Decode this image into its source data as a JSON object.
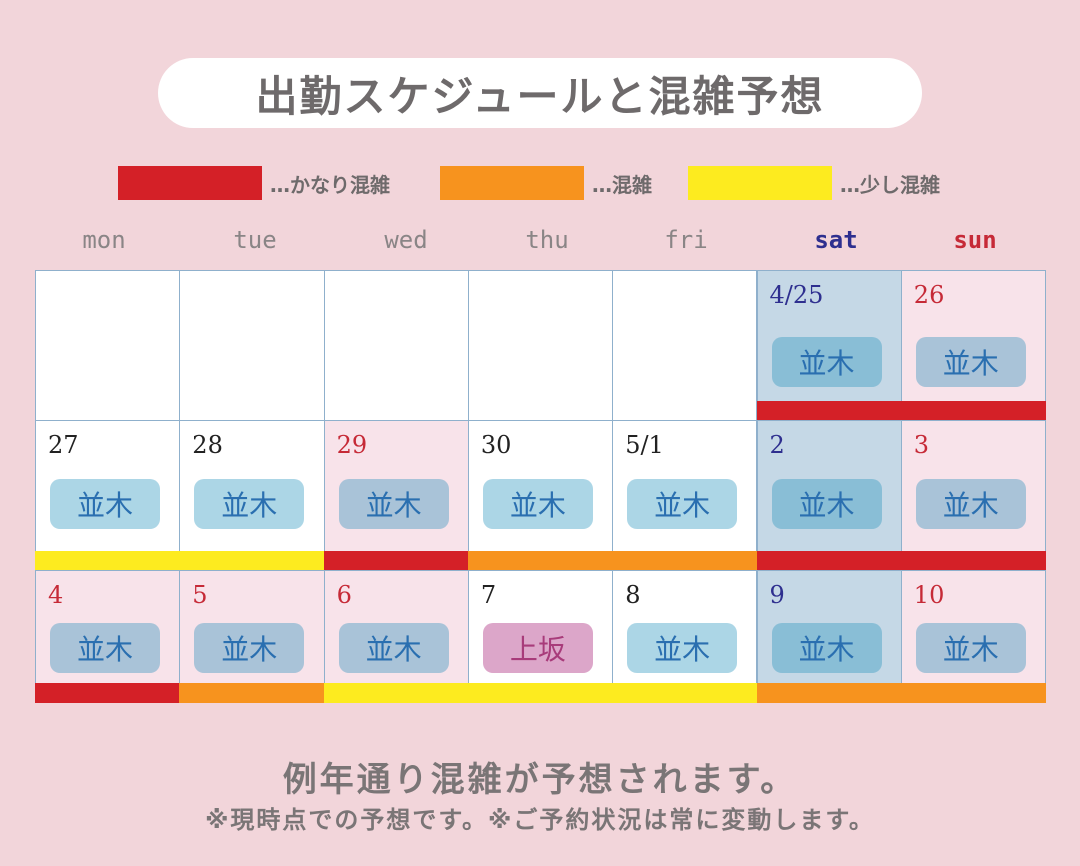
{
  "title": "出勤スケジュールと混雑予想",
  "legend": [
    {
      "label": "…かなり混雑",
      "color": "#d42027"
    },
    {
      "label": "…混雑",
      "color": "#f7931e"
    },
    {
      "label": "…少し混雑",
      "color": "#fdeb1f"
    }
  ],
  "weekdays": [
    "mon",
    "tue",
    "wed",
    "thu",
    "fri",
    "sat",
    "sun"
  ],
  "weeks": [
    {
      "days": [
        {
          "date": "",
          "staff": ""
        },
        {
          "date": "",
          "staff": ""
        },
        {
          "date": "",
          "staff": ""
        },
        {
          "date": "",
          "staff": ""
        },
        {
          "date": "",
          "staff": ""
        },
        {
          "date": "4/25",
          "staff": "並木"
        },
        {
          "date": "26",
          "staff": "並木"
        }
      ],
      "crowd": [
        "none",
        "none",
        "none",
        "none",
        "none",
        "high",
        "high"
      ]
    },
    {
      "days": [
        {
          "date": "27",
          "staff": "並木"
        },
        {
          "date": "28",
          "staff": "並木"
        },
        {
          "date": "29",
          "staff": "並木"
        },
        {
          "date": "30",
          "staff": "並木"
        },
        {
          "date": "5/1",
          "staff": "並木"
        },
        {
          "date": "2",
          "staff": "並木"
        },
        {
          "date": "3",
          "staff": "並木"
        }
      ],
      "crowd": [
        "low",
        "low",
        "high",
        "medium",
        "medium",
        "high",
        "high"
      ]
    },
    {
      "days": [
        {
          "date": "4",
          "staff": "並木"
        },
        {
          "date": "5",
          "staff": "並木"
        },
        {
          "date": "6",
          "staff": "並木"
        },
        {
          "date": "7",
          "staff": "上坂"
        },
        {
          "date": "8",
          "staff": "並木"
        },
        {
          "date": "9",
          "staff": "並木"
        },
        {
          "date": "10",
          "staff": "並木"
        }
      ],
      "crowd": [
        "high",
        "medium",
        "low",
        "low",
        "low",
        "medium",
        "medium"
      ]
    }
  ],
  "footer": {
    "main": "例年通り混雑が予想されます。",
    "note": "※現時点での予想です。※ご予約状況は常に変動します。"
  }
}
